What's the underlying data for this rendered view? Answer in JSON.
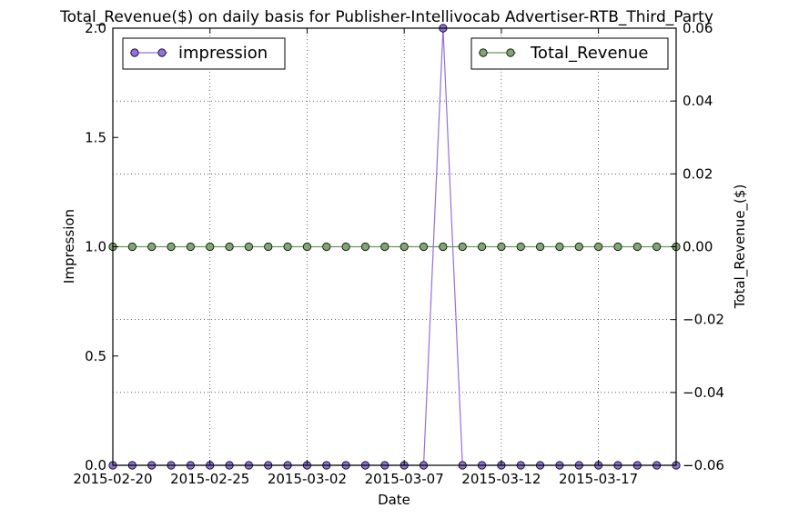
{
  "chart_data": {
    "type": "line",
    "title": "Total_Revenue($) on daily basis for Publisher-Intellivocab Advertiser-RTB_Third_Party",
    "xlabel": "Date",
    "ylabel_left": "Impression",
    "ylabel_right": "Total_Revenue_($)",
    "x_ticks": [
      "2015-02-20",
      "2015-02-25",
      "2015-03-02",
      "2015-03-07",
      "2015-03-12",
      "2015-03-17"
    ],
    "y_left_ticks": [
      "0.0",
      "0.5",
      "1.0",
      "1.5",
      "2.0"
    ],
    "y_right_ticks": [
      "−0.06",
      "−0.04",
      "−0.02",
      "0.00",
      "0.02",
      "0.04",
      "0.06"
    ],
    "xlim": [
      "2015-02-20",
      "2015-03-21"
    ],
    "ylim_left": [
      0,
      2
    ],
    "ylim_right": [
      -0.06,
      0.06
    ],
    "grid": true,
    "x": [
      "2015-02-20",
      "2015-02-21",
      "2015-02-22",
      "2015-02-23",
      "2015-02-24",
      "2015-02-25",
      "2015-02-26",
      "2015-02-27",
      "2015-02-28",
      "2015-03-01",
      "2015-03-02",
      "2015-03-03",
      "2015-03-04",
      "2015-03-05",
      "2015-03-06",
      "2015-03-07",
      "2015-03-08",
      "2015-03-09",
      "2015-03-10",
      "2015-03-11",
      "2015-03-12",
      "2015-03-13",
      "2015-03-14",
      "2015-03-15",
      "2015-03-16",
      "2015-03-17",
      "2015-03-18",
      "2015-03-19",
      "2015-03-20",
      "2015-03-21"
    ],
    "series": [
      {
        "name": "impression",
        "axis": "left",
        "color": "#9370db",
        "legend_position": "top-left",
        "values": [
          0,
          0,
          0,
          0,
          0,
          0,
          0,
          0,
          0,
          0,
          0,
          0,
          0,
          0,
          0,
          0,
          0,
          2,
          0,
          0,
          0,
          0,
          0,
          0,
          0,
          0,
          0,
          0,
          0,
          0
        ]
      },
      {
        "name": "Total_Revenue",
        "axis": "right",
        "color": "#6b9b5a",
        "marker_color": "#7fa870",
        "legend_position": "top-right",
        "values": [
          0,
          0,
          0,
          0,
          0,
          0,
          0,
          0,
          0,
          0,
          0,
          0,
          0,
          0,
          0,
          0,
          0,
          0,
          0,
          0,
          0,
          0,
          0,
          0,
          0,
          0,
          0,
          0,
          0,
          0
        ]
      }
    ]
  }
}
